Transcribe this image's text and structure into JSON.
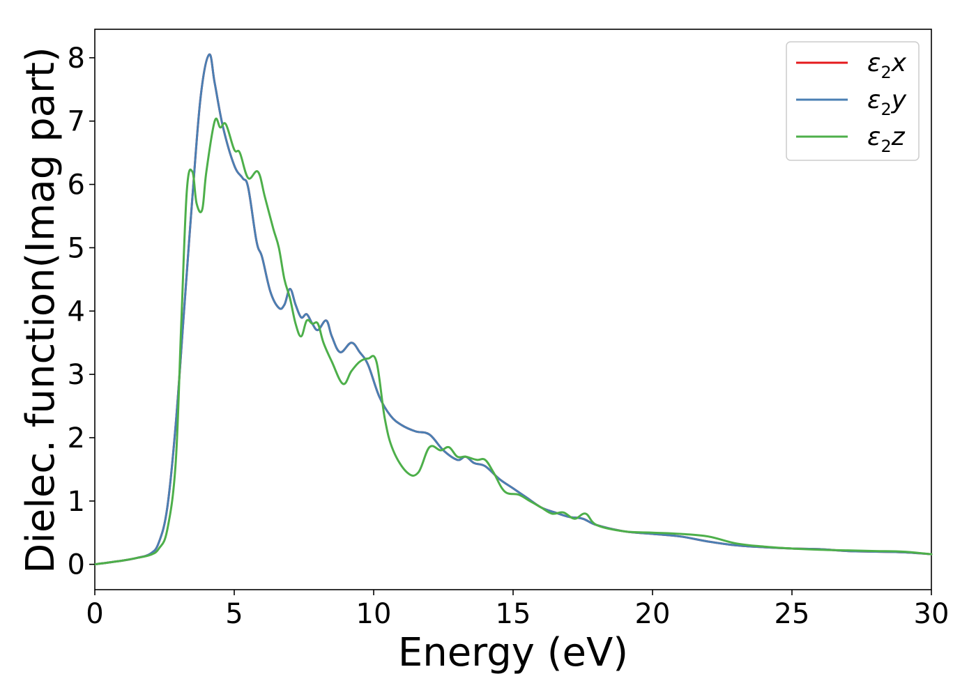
{
  "chart_data": {
    "type": "line",
    "xlabel": "Energy (eV)",
    "ylabel": "Dielec. function(Imag part)",
    "xlim": [
      0,
      30
    ],
    "ylim": [
      -0.4,
      8.45
    ],
    "xticks": [
      0,
      5,
      10,
      15,
      20,
      25,
      30
    ],
    "yticks": [
      0,
      1,
      2,
      3,
      4,
      5,
      6,
      7,
      8
    ],
    "grid": false,
    "legend_position": "top-right",
    "series": [
      {
        "name": "ε2x",
        "legend_base": "ε",
        "legend_sub": "2",
        "legend_suffix": "x",
        "color": "#e41a1c",
        "x": [
          0,
          1,
          1.5,
          2,
          2.3,
          2.6,
          2.9,
          3.2,
          3.5,
          3.8,
          4.1,
          4.3,
          4.6,
          5.0,
          5.3,
          5.5,
          5.8,
          6.0,
          6.3,
          6.6,
          6.8,
          7.0,
          7.2,
          7.4,
          7.6,
          7.8,
          8.0,
          8.3,
          8.5,
          8.8,
          9.2,
          9.5,
          9.8,
          10.2,
          10.6,
          11.0,
          11.5,
          12.0,
          12.5,
          13.0,
          13.3,
          13.6,
          14.0,
          14.5,
          15.0,
          15.5,
          16.0,
          16.5,
          17.0,
          17.5,
          18.0,
          19.0,
          20.0,
          21.0,
          22.0,
          23.0,
          24.0,
          25.0,
          26.0,
          27.0,
          28.0,
          29.0,
          30.0
        ],
        "y": [
          0.0,
          0.06,
          0.1,
          0.17,
          0.35,
          0.9,
          2.2,
          4.0,
          5.8,
          7.4,
          8.05,
          7.6,
          6.9,
          6.3,
          6.1,
          5.95,
          5.1,
          4.85,
          4.3,
          4.05,
          4.1,
          4.35,
          4.1,
          3.9,
          3.95,
          3.8,
          3.7,
          3.85,
          3.6,
          3.35,
          3.5,
          3.35,
          3.15,
          2.65,
          2.35,
          2.2,
          2.1,
          2.05,
          1.8,
          1.65,
          1.7,
          1.6,
          1.55,
          1.35,
          1.2,
          1.05,
          0.9,
          0.82,
          0.75,
          0.72,
          0.62,
          0.52,
          0.48,
          0.44,
          0.36,
          0.3,
          0.27,
          0.25,
          0.24,
          0.21,
          0.2,
          0.19,
          0.16
        ]
      },
      {
        "name": "ε2y",
        "legend_base": "ε",
        "legend_sub": "2",
        "legend_suffix": "y",
        "color": "#4a7fb3",
        "x": [
          0,
          1,
          1.5,
          2,
          2.3,
          2.6,
          2.9,
          3.2,
          3.5,
          3.8,
          4.1,
          4.3,
          4.6,
          5.0,
          5.3,
          5.5,
          5.8,
          6.0,
          6.3,
          6.6,
          6.8,
          7.0,
          7.2,
          7.4,
          7.6,
          7.8,
          8.0,
          8.3,
          8.5,
          8.8,
          9.2,
          9.5,
          9.8,
          10.2,
          10.6,
          11.0,
          11.5,
          12.0,
          12.5,
          13.0,
          13.3,
          13.6,
          14.0,
          14.5,
          15.0,
          15.5,
          16.0,
          16.5,
          17.0,
          17.5,
          18.0,
          19.0,
          20.0,
          21.0,
          22.0,
          23.0,
          24.0,
          25.0,
          26.0,
          27.0,
          28.0,
          29.0,
          30.0
        ],
        "y": [
          0.0,
          0.06,
          0.1,
          0.17,
          0.35,
          0.9,
          2.2,
          4.0,
          5.8,
          7.4,
          8.05,
          7.6,
          6.9,
          6.3,
          6.1,
          5.95,
          5.1,
          4.85,
          4.3,
          4.05,
          4.1,
          4.35,
          4.1,
          3.9,
          3.95,
          3.8,
          3.7,
          3.85,
          3.6,
          3.35,
          3.5,
          3.35,
          3.15,
          2.65,
          2.35,
          2.2,
          2.1,
          2.05,
          1.8,
          1.65,
          1.7,
          1.6,
          1.55,
          1.35,
          1.2,
          1.05,
          0.9,
          0.82,
          0.75,
          0.72,
          0.62,
          0.52,
          0.48,
          0.44,
          0.36,
          0.3,
          0.27,
          0.25,
          0.24,
          0.21,
          0.2,
          0.19,
          0.16
        ]
      },
      {
        "name": "ε2z",
        "legend_base": "ε",
        "legend_sub": "2",
        "legend_suffix": "z",
        "color": "#4daf4a",
        "x": [
          0,
          1,
          1.5,
          2,
          2.3,
          2.6,
          2.9,
          3.1,
          3.3,
          3.5,
          3.65,
          3.85,
          4.0,
          4.3,
          4.5,
          4.7,
          5.0,
          5.2,
          5.5,
          5.85,
          6.1,
          6.4,
          6.6,
          6.8,
          7.0,
          7.2,
          7.4,
          7.6,
          7.8,
          8.0,
          8.2,
          8.5,
          8.9,
          9.2,
          9.5,
          9.8,
          10.1,
          10.4,
          10.7,
          11.2,
          11.6,
          12.0,
          12.4,
          12.7,
          13.0,
          13.3,
          13.7,
          14.0,
          14.3,
          14.7,
          15.2,
          15.6,
          16.0,
          16.4,
          16.8,
          17.2,
          17.6,
          18.0,
          19.0,
          20.0,
          21.0,
          22.0,
          23.0,
          24.0,
          25.0,
          26.0,
          27.0,
          28.0,
          29.0,
          30.0
        ],
        "y": [
          0.0,
          0.06,
          0.1,
          0.15,
          0.25,
          0.55,
          1.6,
          3.8,
          5.9,
          6.2,
          5.7,
          5.6,
          6.2,
          7.0,
          6.9,
          6.95,
          6.55,
          6.5,
          6.1,
          6.2,
          5.8,
          5.3,
          5.0,
          4.5,
          4.2,
          3.8,
          3.6,
          3.85,
          3.8,
          3.8,
          3.5,
          3.2,
          2.85,
          3.05,
          3.2,
          3.25,
          3.2,
          2.3,
          1.8,
          1.45,
          1.45,
          1.85,
          1.8,
          1.85,
          1.7,
          1.7,
          1.65,
          1.65,
          1.45,
          1.15,
          1.1,
          1.0,
          0.9,
          0.8,
          0.82,
          0.72,
          0.8,
          0.62,
          0.52,
          0.5,
          0.48,
          0.44,
          0.33,
          0.28,
          0.25,
          0.23,
          0.22,
          0.21,
          0.2,
          0.16
        ]
      }
    ]
  }
}
